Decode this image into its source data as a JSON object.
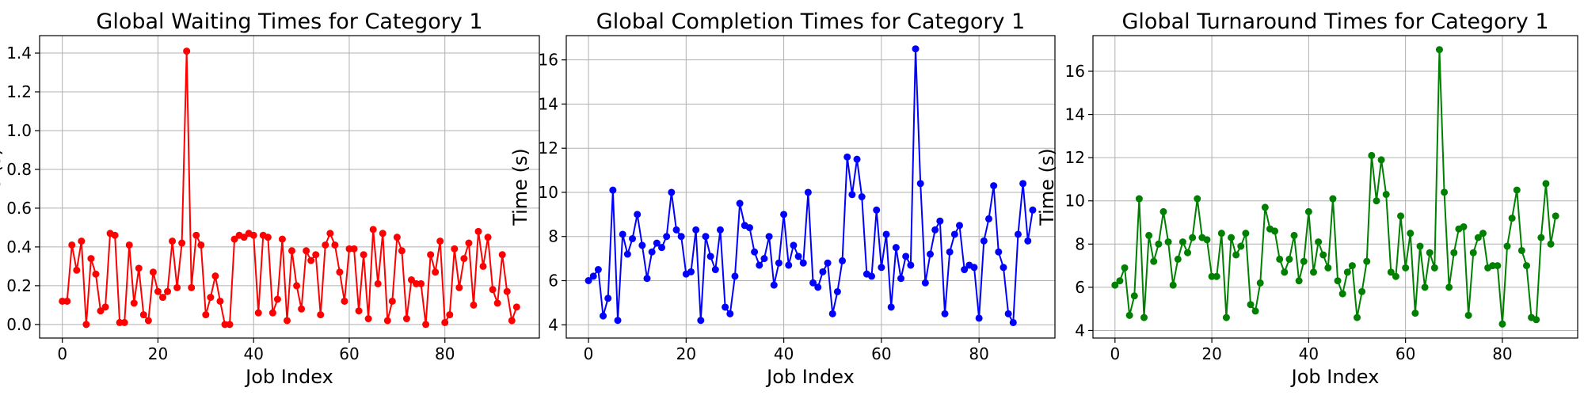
{
  "chart_data": [
    {
      "type": "line",
      "title": "Global Waiting Times for Category 1",
      "xlabel": "Job Index",
      "ylabel": "Time (s)",
      "color": "#ff0000",
      "grid": true,
      "xlim": [
        -4.75,
        99.75
      ],
      "ylim": [
        -0.07,
        1.49
      ],
      "xticks": [
        0,
        20,
        40,
        60,
        80
      ],
      "xtick_labels": [
        "0",
        "20",
        "40",
        "60",
        "80"
      ],
      "yticks": [
        0.0,
        0.2,
        0.4,
        0.6,
        0.8,
        1.0,
        1.2,
        1.4
      ],
      "ytick_labels": [
        "0.0",
        "0.2",
        "0.4",
        "0.6",
        "0.8",
        "1.0",
        "1.2",
        "1.4"
      ],
      "series": [
        {
          "x": [
            0,
            1,
            2,
            3,
            4,
            5,
            6,
            7,
            8,
            9,
            10,
            11,
            12,
            13,
            14,
            15,
            16,
            17,
            18,
            19,
            20,
            21,
            22,
            23,
            24,
            25,
            26,
            27,
            28,
            29,
            30,
            31,
            32,
            33,
            34,
            35,
            36,
            37,
            38,
            39,
            40,
            41,
            42,
            43,
            44,
            45,
            46,
            47,
            48,
            49,
            50,
            51,
            52,
            53,
            54,
            55,
            56,
            57,
            58,
            59,
            60,
            61,
            62,
            63,
            64,
            65,
            66,
            67,
            68,
            69,
            70,
            71,
            72,
            73,
            74,
            75,
            76,
            77,
            78,
            79,
            80,
            81,
            82,
            83,
            84,
            85,
            86,
            87,
            88,
            89,
            90,
            91,
            92,
            93,
            94,
            95
          ],
          "values": [
            0.12,
            0.12,
            0.41,
            0.28,
            0.43,
            0.0,
            0.34,
            0.26,
            0.07,
            0.09,
            0.47,
            0.46,
            0.01,
            0.01,
            0.41,
            0.11,
            0.29,
            0.05,
            0.02,
            0.27,
            0.17,
            0.14,
            0.17,
            0.43,
            0.19,
            0.42,
            1.41,
            0.19,
            0.46,
            0.41,
            0.05,
            0.14,
            0.25,
            0.12,
            0.0,
            0.0,
            0.44,
            0.46,
            0.45,
            0.47,
            0.46,
            0.06,
            0.46,
            0.45,
            0.06,
            0.13,
            0.44,
            0.02,
            0.38,
            0.2,
            0.08,
            0.38,
            0.33,
            0.36,
            0.05,
            0.41,
            0.47,
            0.41,
            0.27,
            0.12,
            0.39,
            0.39,
            0.07,
            0.36,
            0.03,
            0.49,
            0.21,
            0.47,
            0.02,
            0.12,
            0.45,
            0.38,
            0.03,
            0.23,
            0.21,
            0.21,
            0.0,
            0.36,
            0.27,
            0.43,
            0.01,
            0.05,
            0.39,
            0.19,
            0.34,
            0.42,
            0.1,
            0.48,
            0.3,
            0.45,
            0.18,
            0.11,
            0.36,
            0.17,
            0.02,
            0.09
          ]
        }
      ]
    },
    {
      "type": "line",
      "title": "Global Completion Times for Category 1",
      "xlabel": "Job Index",
      "ylabel": "Time (s)",
      "color": "#0000ff",
      "grid": true,
      "xlim": [
        -4.55,
        95.55
      ],
      "ylim": [
        3.4,
        17.1
      ],
      "xticks": [
        0,
        20,
        40,
        60,
        80
      ],
      "xtick_labels": [
        "0",
        "20",
        "40",
        "60",
        "80"
      ],
      "yticks": [
        4,
        6,
        8,
        10,
        12,
        14,
        16
      ],
      "ytick_labels": [
        "4",
        "6",
        "8",
        "10",
        "12",
        "14",
        "16"
      ],
      "series": [
        {
          "x": [
            0,
            1,
            2,
            3,
            4,
            5,
            6,
            7,
            8,
            9,
            10,
            11,
            12,
            13,
            14,
            15,
            16,
            17,
            18,
            19,
            20,
            21,
            22,
            23,
            24,
            25,
            26,
            27,
            28,
            29,
            30,
            31,
            32,
            33,
            34,
            35,
            36,
            37,
            38,
            39,
            40,
            41,
            42,
            43,
            44,
            45,
            46,
            47,
            48,
            49,
            50,
            51,
            52,
            53,
            54,
            55,
            56,
            57,
            58,
            59,
            60,
            61,
            62,
            63,
            64,
            65,
            66,
            67,
            68,
            69,
            70,
            71,
            72,
            73,
            74,
            75,
            76,
            77,
            78,
            79,
            80,
            81,
            82,
            83,
            84,
            85,
            86,
            87,
            88,
            89,
            90,
            91
          ],
          "values": [
            6.0,
            6.2,
            6.5,
            4.4,
            5.2,
            10.1,
            4.2,
            8.1,
            7.2,
            7.9,
            9.0,
            7.6,
            6.1,
            7.3,
            7.7,
            7.5,
            8.0,
            10.0,
            8.3,
            8.0,
            6.3,
            6.4,
            8.3,
            4.2,
            8.0,
            7.1,
            6.5,
            8.3,
            4.8,
            4.5,
            6.2,
            9.5,
            8.5,
            8.4,
            7.3,
            6.7,
            7.0,
            8.0,
            5.8,
            6.8,
            9.0,
            6.7,
            7.6,
            7.1,
            6.8,
            10.0,
            5.9,
            5.7,
            6.4,
            6.8,
            4.5,
            5.5,
            6.9,
            11.6,
            9.9,
            11.5,
            9.8,
            6.3,
            6.2,
            9.2,
            6.6,
            8.1,
            4.8,
            7.5,
            6.1,
            7.1,
            6.7,
            16.5,
            10.4,
            5.9,
            7.2,
            8.3,
            8.7,
            4.5,
            7.3,
            8.1,
            8.5,
            6.5,
            6.7,
            6.6,
            4.3,
            7.8,
            8.8,
            10.3,
            7.3,
            6.6,
            4.5,
            4.1,
            8.1,
            10.4,
            7.8,
            9.2
          ]
        }
      ]
    },
    {
      "type": "line",
      "title": "Global Turnaround Times for Category 1",
      "xlabel": "Job Index",
      "ylabel": "Time (s)",
      "color": "#008000",
      "grid": true,
      "xlim": [
        -4.55,
        95.55
      ],
      "ylim": [
        3.65,
        17.65
      ],
      "xticks": [
        0,
        20,
        40,
        60,
        80
      ],
      "xtick_labels": [
        "0",
        "20",
        "40",
        "60",
        "80"
      ],
      "yticks": [
        4,
        6,
        8,
        10,
        12,
        14,
        16
      ],
      "ytick_labels": [
        "4",
        "6",
        "8",
        "10",
        "12",
        "14",
        "16"
      ],
      "series": [
        {
          "x": [
            0,
            1,
            2,
            3,
            4,
            5,
            6,
            7,
            8,
            9,
            10,
            11,
            12,
            13,
            14,
            15,
            16,
            17,
            18,
            19,
            20,
            21,
            22,
            23,
            24,
            25,
            26,
            27,
            28,
            29,
            30,
            31,
            32,
            33,
            34,
            35,
            36,
            37,
            38,
            39,
            40,
            41,
            42,
            43,
            44,
            45,
            46,
            47,
            48,
            49,
            50,
            51,
            52,
            53,
            54,
            55,
            56,
            57,
            58,
            59,
            60,
            61,
            62,
            63,
            64,
            65,
            66,
            67,
            68,
            69,
            70,
            71,
            72,
            73,
            74,
            75,
            76,
            77,
            78,
            79,
            80,
            81,
            82,
            83,
            84,
            85,
            86,
            87,
            88,
            89,
            90,
            91
          ],
          "values": [
            6.1,
            6.3,
            6.9,
            4.7,
            5.6,
            10.1,
            4.6,
            8.4,
            7.2,
            8.0,
            9.5,
            8.1,
            6.1,
            7.3,
            8.1,
            7.6,
            8.3,
            10.1,
            8.3,
            8.2,
            6.5,
            6.5,
            8.5,
            4.6,
            8.3,
            7.5,
            7.9,
            8.5,
            5.2,
            4.9,
            6.2,
            9.7,
            8.7,
            8.6,
            7.3,
            6.7,
            7.3,
            8.4,
            6.3,
            7.2,
            9.5,
            6.7,
            8.1,
            7.5,
            6.9,
            10.1,
            6.3,
            5.7,
            6.7,
            7.0,
            4.6,
            5.8,
            7.2,
            12.1,
            10.0,
            11.9,
            10.3,
            6.7,
            6.5,
            9.3,
            6.9,
            8.5,
            4.8,
            7.9,
            6.0,
            7.6,
            6.9,
            17.0,
            10.4,
            6.0,
            7.6,
            8.7,
            8.8,
            4.7,
            7.6,
            8.3,
            8.5,
            6.9,
            7.0,
            7.0,
            4.3,
            7.9,
            9.2,
            10.5,
            7.7,
            7.0,
            4.6,
            4.5,
            8.3,
            10.8,
            8.0,
            9.3
          ]
        }
      ]
    }
  ]
}
